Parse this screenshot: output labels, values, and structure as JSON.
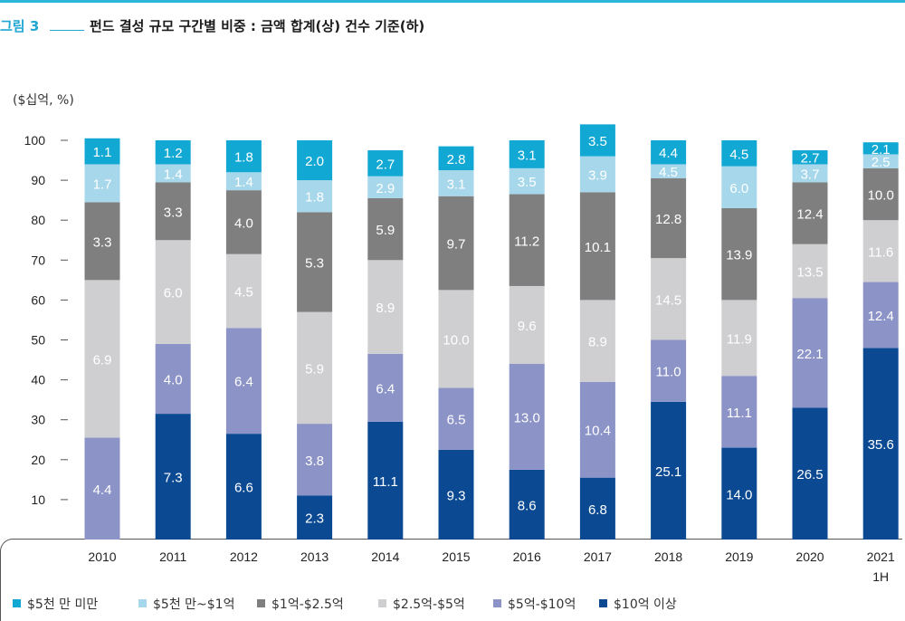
{
  "figure": {
    "number": "그림 3",
    "title": "펀드 결성 규모 구간별 비중 : 금액 합계(상) 건수 기준(하)",
    "unit": "($십억, %)"
  },
  "colors": {
    "accent": "#1ea6d3",
    "series": [
      "#0b4a93",
      "#8c93c7",
      "#cfcfd1",
      "#7f7f80",
      "#a6d7ea",
      "#12a8d4"
    ]
  },
  "chart_data": {
    "type": "bar",
    "stacked": true,
    "categories": [
      "2010",
      "2011",
      "2012",
      "2013",
      "2014",
      "2015",
      "2016",
      "2017",
      "2018",
      "2019",
      "2020",
      "2021\n1H"
    ],
    "ylim": [
      0,
      100
    ],
    "yticks": [
      10,
      20,
      30,
      40,
      50,
      60,
      70,
      80,
      90,
      100
    ],
    "xlabel": "",
    "ylabel": "",
    "legend_position": "bottom",
    "series": [
      {
        "name": "$10억 이상",
        "values": [
          0,
          7.3,
          6.6,
          2.3,
          11.1,
          9.3,
          8.6,
          6.8,
          25.1,
          14.0,
          26.5,
          35.6
        ],
        "heights": [
          0,
          31.5,
          26.5,
          11,
          29.5,
          22.5,
          17.5,
          15.5,
          34.5,
          23,
          33,
          48
        ]
      },
      {
        "name": "$5억-$10억",
        "values": [
          4.4,
          4.0,
          6.4,
          3.8,
          6.4,
          6.5,
          13.0,
          10.4,
          11.0,
          11.1,
          22.1,
          12.4
        ],
        "heights": [
          25.5,
          17.5,
          26.5,
          18,
          17,
          15.5,
          26.5,
          24,
          15.5,
          18,
          27.5,
          16.5
        ]
      },
      {
        "name": "$2.5억-$5억",
        "values": [
          6.9,
          6.0,
          4.5,
          5.9,
          8.9,
          10.0,
          9.6,
          8.9,
          14.5,
          11.9,
          13.5,
          11.6
        ],
        "heights": [
          39.5,
          26,
          18.5,
          28,
          23.5,
          24.5,
          19.5,
          20.5,
          20.5,
          19,
          13.5,
          15.5
        ]
      },
      {
        "name": "$1억-$2.5억",
        "values": [
          3.3,
          3.3,
          4.0,
          5.3,
          5.9,
          9.7,
          11.2,
          10.1,
          12.8,
          13.9,
          12.4,
          10.0
        ],
        "heights": [
          19.5,
          14.5,
          16,
          25,
          15.5,
          23.5,
          23,
          27,
          20,
          23,
          15.5,
          13
        ]
      },
      {
        "name": "$5천 만~$1억",
        "values": [
          1.7,
          1.4,
          1.4,
          1.8,
          2.9,
          3.1,
          3.5,
          3.9,
          4.5,
          6.0,
          3.7,
          2.5
        ],
        "heights": [
          9.5,
          4.5,
          4.5,
          8,
          5.5,
          6.5,
          6.5,
          9,
          3.5,
          10.5,
          4.5,
          3.5
        ]
      },
      {
        "name": "$5천 만 미만",
        "values": [
          1.1,
          1.2,
          1.8,
          2.0,
          2.7,
          2.8,
          3.1,
          3.5,
          4.4,
          4.5,
          2.7,
          2.1
        ],
        "heights": [
          6.5,
          6,
          8,
          10,
          6.5,
          6,
          7,
          8,
          6,
          6.5,
          3.5,
          3
        ]
      }
    ]
  }
}
